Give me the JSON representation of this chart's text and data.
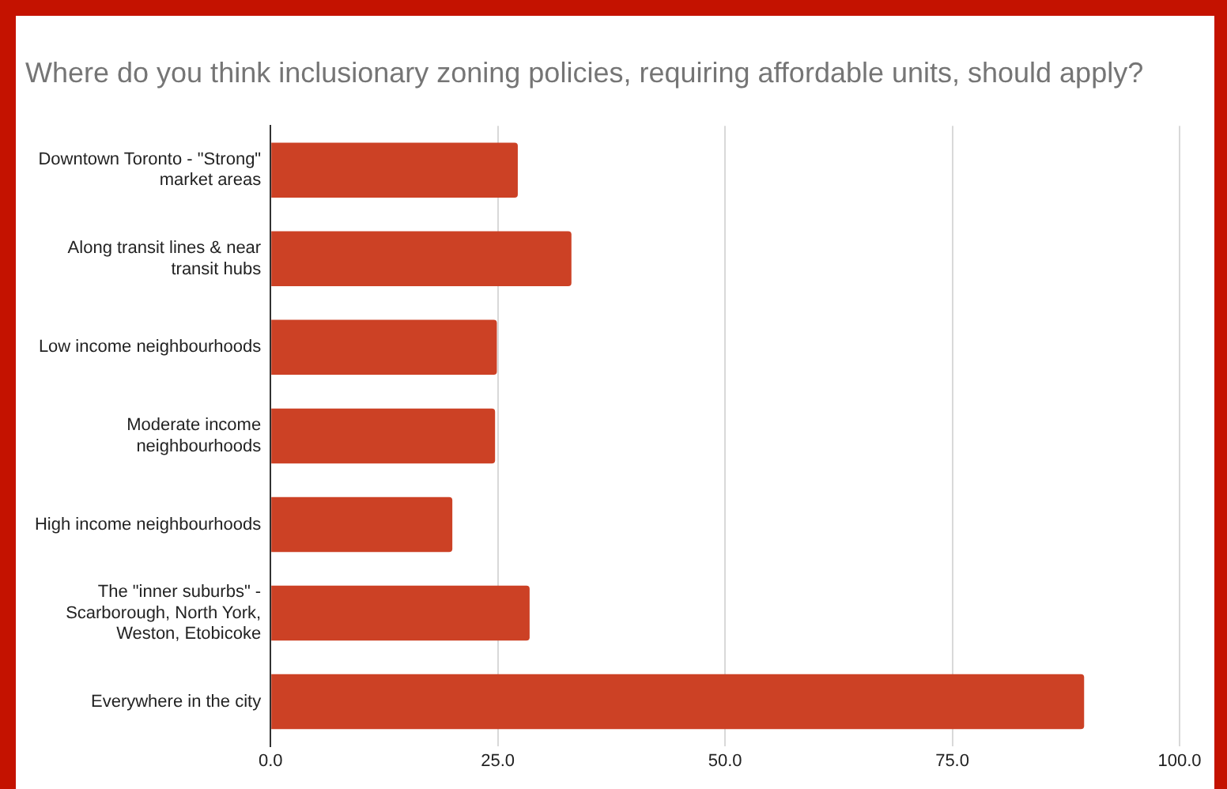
{
  "chart_data": {
    "type": "bar",
    "orientation": "horizontal",
    "title": "Where do you think inclusionary zoning policies, requiring affordable units, should apply?",
    "categories": [
      "Downtown Toronto - \"Strong\" market areas",
      "Along transit lines & near transit hubs",
      "Low income neighbourhoods",
      "Moderate income neighbourhoods",
      "High income neighbourhoods",
      "The \"inner suburbs\" - Scarborough, North York, Weston, Etobicoke",
      "Everywhere in the city"
    ],
    "values": [
      27.2,
      33.1,
      24.9,
      24.7,
      20.0,
      28.5,
      89.5
    ],
    "color": "#cc4125",
    "xlim": [
      0,
      100
    ],
    "xticks": [
      {
        "value": 0,
        "label": "0.0"
      },
      {
        "value": 25,
        "label": "25.0"
      },
      {
        "value": 50,
        "label": "50.0"
      },
      {
        "value": 75,
        "label": "75.0"
      },
      {
        "value": 100,
        "label": "100.0"
      }
    ],
    "grid": "x",
    "legend": false
  }
}
